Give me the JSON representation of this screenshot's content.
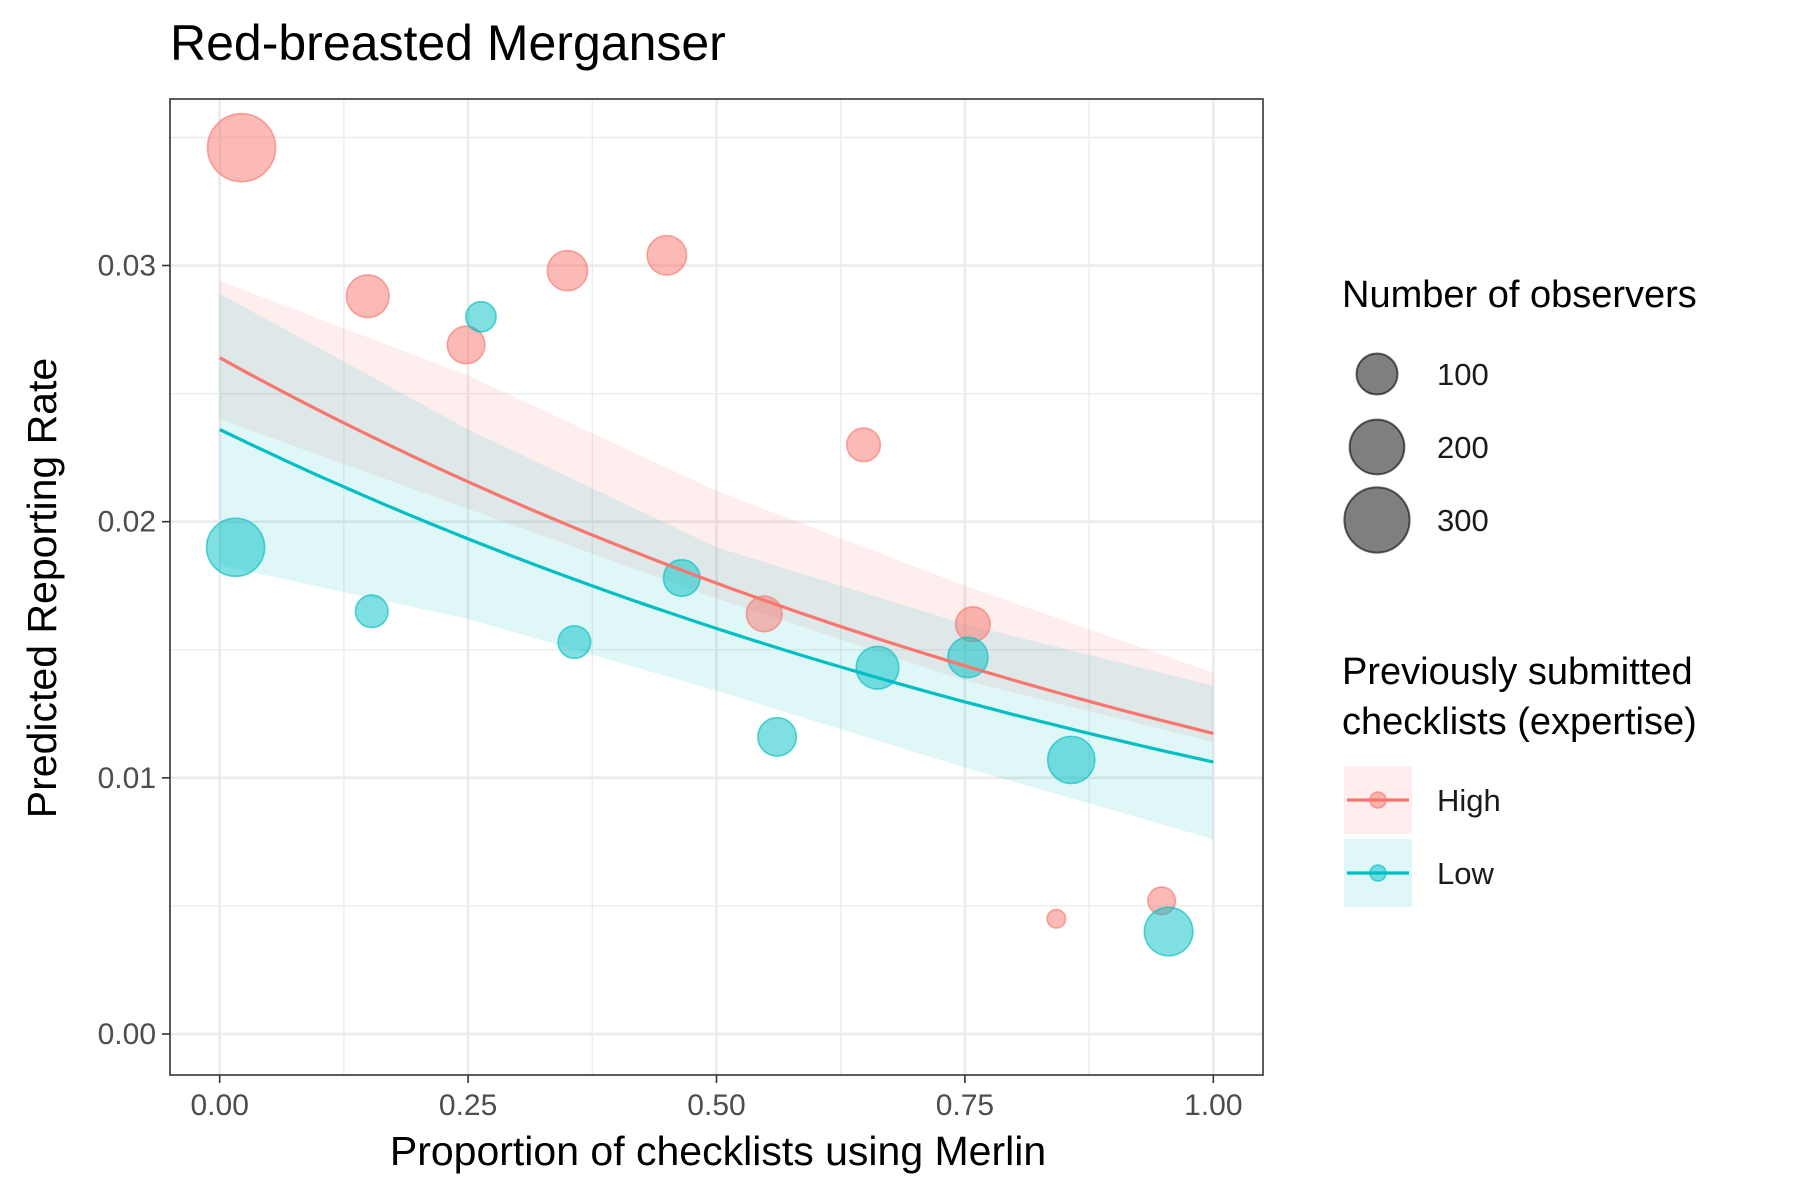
{
  "chart_data": {
    "type": "scatter",
    "title": "Red-breasted Merganser",
    "xlabel": "Proportion of checklists using Merlin",
    "ylabel": "Predicted Reporting Rate",
    "xlim": [
      -0.05,
      1.05
    ],
    "ylim": [
      -0.0016,
      0.0365
    ],
    "x_ticks": [
      0.0,
      0.25,
      0.5,
      0.75,
      1.0
    ],
    "x_tick_labels": [
      "0.00",
      "0.25",
      "0.50",
      "0.75",
      "1.00"
    ],
    "y_ticks": [
      0.0,
      0.01,
      0.02,
      0.03
    ],
    "y_tick_labels": [
      "0.00",
      "0.01",
      "0.02",
      "0.03"
    ],
    "grid": true,
    "series": [
      {
        "name": "High",
        "color": "#F8766D",
        "points": [
          {
            "x": 0.022,
            "y": 0.0346,
            "n": 330
          },
          {
            "x": 0.149,
            "y": 0.0288,
            "n": 110
          },
          {
            "x": 0.248,
            "y": 0.0269,
            "n": 80
          },
          {
            "x": 0.35,
            "y": 0.0298,
            "n": 95
          },
          {
            "x": 0.45,
            "y": 0.0304,
            "n": 90
          },
          {
            "x": 0.548,
            "y": 0.0164,
            "n": 70
          },
          {
            "x": 0.648,
            "y": 0.023,
            "n": 60
          },
          {
            "x": 0.758,
            "y": 0.016,
            "n": 65
          },
          {
            "x": 0.842,
            "y": 0.0045,
            "n": 10
          },
          {
            "x": 0.948,
            "y": 0.0052,
            "n": 35
          }
        ],
        "fit": {
          "intercept": 0.0264,
          "slope": -0.8107
        },
        "ci_lower": [
          0.024,
          0.0205,
          0.017,
          0.0138,
          0.0114
        ],
        "ci_upper": [
          0.0294,
          0.0257,
          0.0212,
          0.0175,
          0.0141
        ]
      },
      {
        "name": "Low",
        "color": "#00BFC4",
        "points": [
          {
            "x": 0.016,
            "y": 0.019,
            "n": 230
          },
          {
            "x": 0.153,
            "y": 0.0165,
            "n": 55
          },
          {
            "x": 0.263,
            "y": 0.028,
            "n": 45
          },
          {
            "x": 0.357,
            "y": 0.0153,
            "n": 55
          },
          {
            "x": 0.465,
            "y": 0.0178,
            "n": 75
          },
          {
            "x": 0.561,
            "y": 0.0116,
            "n": 85
          },
          {
            "x": 0.662,
            "y": 0.0143,
            "n": 110
          },
          {
            "x": 0.753,
            "y": 0.0147,
            "n": 95
          },
          {
            "x": 0.857,
            "y": 0.0107,
            "n": 140
          },
          {
            "x": 0.955,
            "y": 0.004,
            "n": 150
          }
        ],
        "fit": {
          "intercept": 0.0236,
          "slope": -0.7985
        },
        "ci_lower": [
          0.0183,
          0.0162,
          0.0134,
          0.0104,
          0.0076
        ],
        "ci_upper": [
          0.0289,
          0.0236,
          0.019,
          0.016,
          0.0136
        ]
      }
    ],
    "ci_x": [
      0.0,
      0.25,
      0.5,
      0.75,
      1.0
    ],
    "legend_position": "right",
    "size_legend": {
      "title": "Number of observers",
      "entries": [
        {
          "value": 100,
          "label": "100"
        },
        {
          "value": 200,
          "label": "200"
        },
        {
          "value": 300,
          "label": "300"
        }
      ]
    },
    "color_legend": {
      "title_lines": [
        "Previously submitted",
        "checklists (expertise)"
      ],
      "entries": [
        {
          "label": "High",
          "color": "#F8766D"
        },
        {
          "label": "Low",
          "color": "#00BFC4"
        }
      ]
    }
  }
}
